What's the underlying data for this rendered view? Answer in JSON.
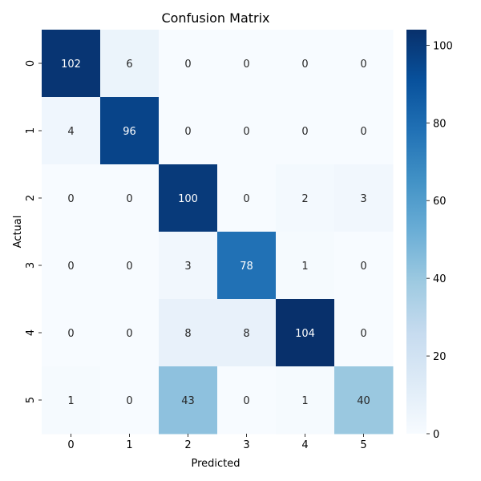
{
  "chart_data": {
    "type": "heatmap",
    "title": "Confusion Matrix",
    "xlabel": "Predicted",
    "ylabel": "Actual",
    "x_categories": [
      "0",
      "1",
      "2",
      "3",
      "4",
      "5"
    ],
    "y_categories": [
      "0",
      "1",
      "2",
      "3",
      "4",
      "5"
    ],
    "values": [
      [
        102,
        6,
        0,
        0,
        0,
        0
      ],
      [
        4,
        96,
        0,
        0,
        0,
        0
      ],
      [
        0,
        0,
        100,
        0,
        2,
        3
      ],
      [
        0,
        0,
        3,
        78,
        1,
        0
      ],
      [
        0,
        0,
        8,
        8,
        104,
        0
      ],
      [
        1,
        0,
        43,
        0,
        1,
        40
      ]
    ],
    "colormap": "Blues",
    "vmin": 0,
    "vmax": 104,
    "colorbar_ticks": [
      0,
      20,
      40,
      60,
      80,
      100
    ],
    "annotations": true
  }
}
